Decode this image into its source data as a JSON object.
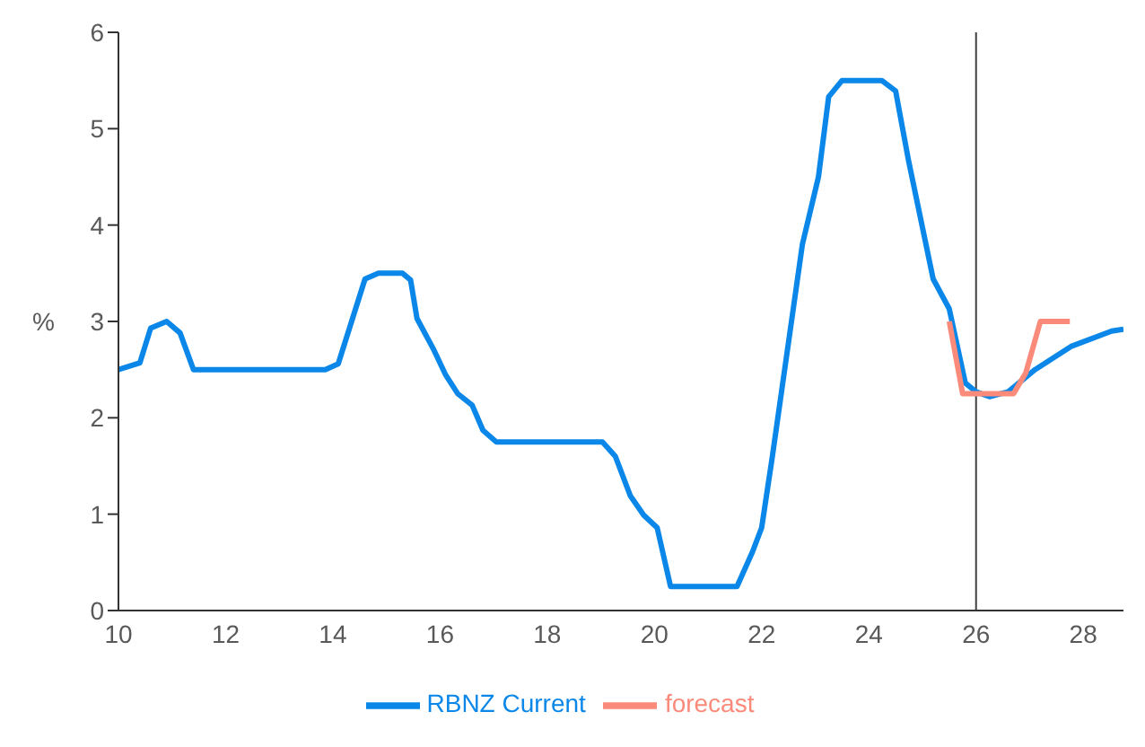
{
  "chart_data": {
    "type": "line",
    "ylabel": "%",
    "xlim": [
      10,
      28.75
    ],
    "xticks": [
      10,
      12,
      14,
      16,
      18,
      20,
      22,
      24,
      26,
      28
    ],
    "ylim": [
      0,
      6
    ],
    "yticks": [
      0,
      1,
      2,
      3,
      4,
      5,
      6
    ],
    "marker": "none",
    "legend": "bottom",
    "ref_lines": [
      {
        "axis": "x",
        "value": 26,
        "color": "#404040"
      }
    ],
    "series": [
      {
        "name": "RBNZ Current",
        "color": "#0a87e8",
        "x": [
          10,
          10.4,
          10.6,
          10.9,
          11.15,
          11.4,
          13.86,
          14.1,
          14.6,
          14.85,
          15.0,
          15.3,
          15.45,
          15.57,
          15.87,
          16.1,
          16.33,
          16.6,
          16.8,
          17.05,
          19.03,
          19.27,
          19.55,
          19.8,
          20.05,
          20.3,
          21.54,
          21.83,
          22.0,
          22.2,
          22.76,
          23.06,
          23.25,
          23.5,
          24.24,
          24.5,
          24.74,
          25.2,
          25.5,
          25.8,
          26.0,
          26.25,
          26.6,
          27.1,
          27.77,
          28.53,
          28.75
        ],
        "values": [
          2.5,
          2.57,
          2.93,
          3.0,
          2.88,
          2.5,
          2.5,
          2.56,
          3.44,
          3.5,
          3.5,
          3.5,
          3.43,
          3.03,
          2.72,
          2.45,
          2.25,
          2.13,
          1.87,
          1.75,
          1.75,
          1.6,
          1.19,
          0.99,
          0.86,
          0.25,
          0.25,
          0.61,
          0.86,
          1.6,
          3.8,
          4.5,
          5.33,
          5.5,
          5.5,
          5.39,
          4.67,
          3.44,
          3.13,
          2.36,
          2.27,
          2.22,
          2.27,
          2.5,
          2.74,
          2.9,
          2.92
        ]
      },
      {
        "name": "forecast",
        "color": "#fa8a7a",
        "x": [
          25.5,
          25.75,
          26.7,
          26.93,
          27.2,
          27.75
        ],
        "values": [
          3.0,
          2.25,
          2.25,
          2.47,
          3.0,
          3.0
        ]
      }
    ]
  }
}
